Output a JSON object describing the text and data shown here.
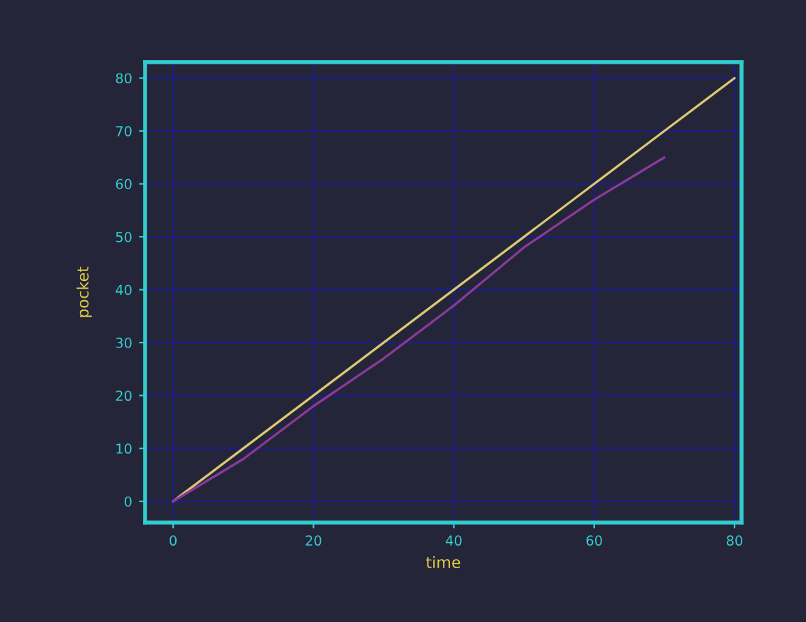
{
  "chart_data": {
    "type": "line",
    "xlabel": "time",
    "ylabel": "pocket",
    "x": [
      0,
      10,
      20,
      30,
      40,
      50,
      60,
      70,
      80
    ],
    "series": [
      {
        "color": "#d8c870",
        "values": [
          0,
          10,
          20,
          30,
          40,
          50,
          60,
          70,
          80
        ]
      },
      {
        "color": "#8a3a9a",
        "values": [
          0,
          8,
          18,
          27,
          37,
          48,
          57,
          65,
          null
        ]
      }
    ],
    "xlim": [
      -4,
      81
    ],
    "xticks": [
      0,
      20,
      40,
      60,
      80
    ],
    "ylim": [
      -4,
      83
    ],
    "yticks": [
      0,
      10,
      20,
      30,
      40,
      50,
      60,
      70,
      80
    ],
    "grid": true,
    "marker": "none",
    "line_style": "solid",
    "legend": false
  }
}
